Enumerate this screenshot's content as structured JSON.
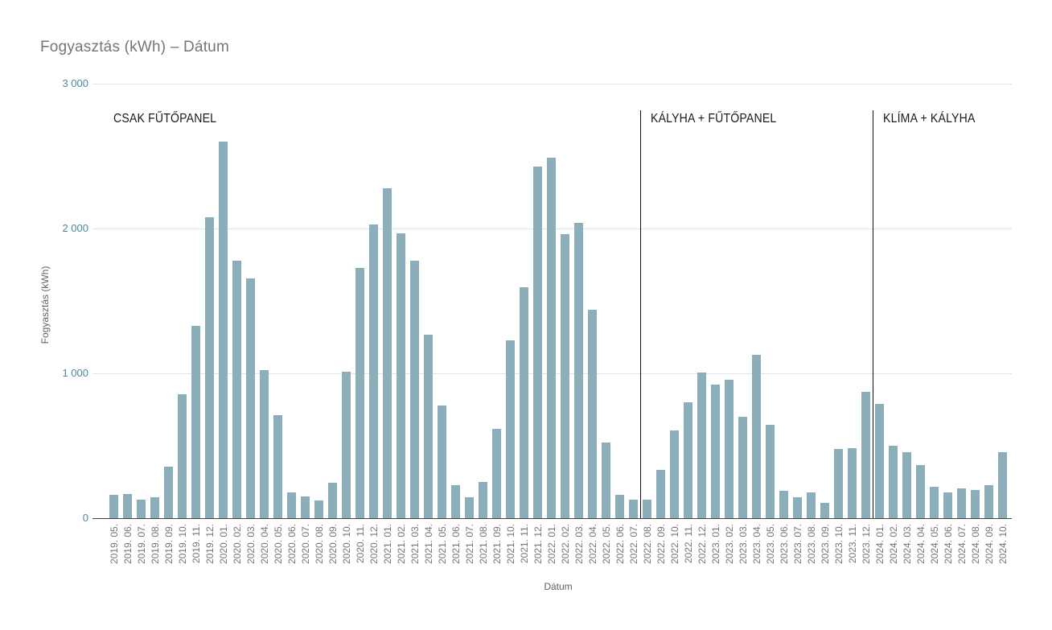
{
  "title": "Fogyasztás (kWh) – Dátum",
  "colors": {
    "bar": "#8BAEBA",
    "gridline": "#DAE6EA",
    "axis_line": "#424242",
    "title_text": "#757575",
    "ytick_text": "#4A8A9E",
    "xtick_text": "#757575",
    "annotation_text": "#1A1A1A",
    "divider_line": "#111111",
    "background": "#FFFFFF"
  },
  "chart_data": {
    "type": "bar",
    "title": "Fogyasztás (kWh) – Dátum",
    "xlabel": "Dátum",
    "ylabel": "Fogyasztás (kWh)",
    "ylim": [
      0,
      3000
    ],
    "yticks": [
      0,
      1000,
      2000,
      3000
    ],
    "ytick_labels": [
      "0",
      "1 000",
      "2 000",
      "3 000"
    ],
    "grid": true,
    "legend": "none",
    "categories": [
      "2019. 05.",
      "2019. 06.",
      "2019. 07.",
      "2019. 08.",
      "2019. 09.",
      "2019. 10.",
      "2019. 11.",
      "2019. 12.",
      "2020. 01.",
      "2020. 02.",
      "2020. 03.",
      "2020. 04.",
      "2020. 05.",
      "2020. 06.",
      "2020. 07.",
      "2020. 08.",
      "2020. 09.",
      "2020. 10.",
      "2020. 11.",
      "2020. 12.",
      "2021. 01.",
      "2021. 02.",
      "2021. 03.",
      "2021. 04.",
      "2021. 05.",
      "2021. 06.",
      "2021. 07.",
      "2021. 08.",
      "2021. 09.",
      "2021. 10.",
      "2021. 11.",
      "2021. 12.",
      "2022. 01.",
      "2022. 02.",
      "2022. 03.",
      "2022. 04.",
      "2022. 05.",
      "2022. 06.",
      "2022. 07.",
      "2022. 08.",
      "2022. 09.",
      "2022. 10.",
      "2022. 11.",
      "2022. 12.",
      "2023. 01.",
      "2023. 02.",
      "2023. 03.",
      "2023. 04.",
      "2023. 05.",
      "2023. 06.",
      "2023. 07.",
      "2023. 08.",
      "2023. 09.",
      "2023. 10.",
      "2023. 11.",
      "2023. 12.",
      "2024. 01.",
      "2024. 02.",
      "2024. 03.",
      "2024. 04.",
      "2024. 05.",
      "2024. 06.",
      "2024. 07.",
      "2024. 08.",
      "2024. 09.",
      "2024. 10."
    ],
    "values": [
      160,
      165,
      125,
      145,
      355,
      855,
      1330,
      2075,
      2600,
      1775,
      1655,
      1020,
      710,
      175,
      150,
      120,
      245,
      1010,
      1730,
      2025,
      2280,
      1965,
      1780,
      1265,
      780,
      225,
      145,
      250,
      615,
      1225,
      1595,
      2425,
      2490,
      1960,
      2040,
      1440,
      520,
      160,
      130,
      130,
      335,
      605,
      800,
      1005,
      920,
      955,
      700,
      1125,
      645,
      190,
      145,
      180,
      105,
      480,
      485,
      870,
      790,
      500,
      455,
      365,
      215,
      175,
      205,
      195,
      230,
      455
    ],
    "annotations": [
      {
        "label": "CSAK FŰTŐPANEL",
        "at_index": 0,
        "line": false
      },
      {
        "label": "KÁLYHA + FŰTŐPANEL",
        "at_index": 39,
        "line": true
      },
      {
        "label": "KLÍMA + KÁLYHA",
        "at_index": 56,
        "line": true
      }
    ]
  }
}
